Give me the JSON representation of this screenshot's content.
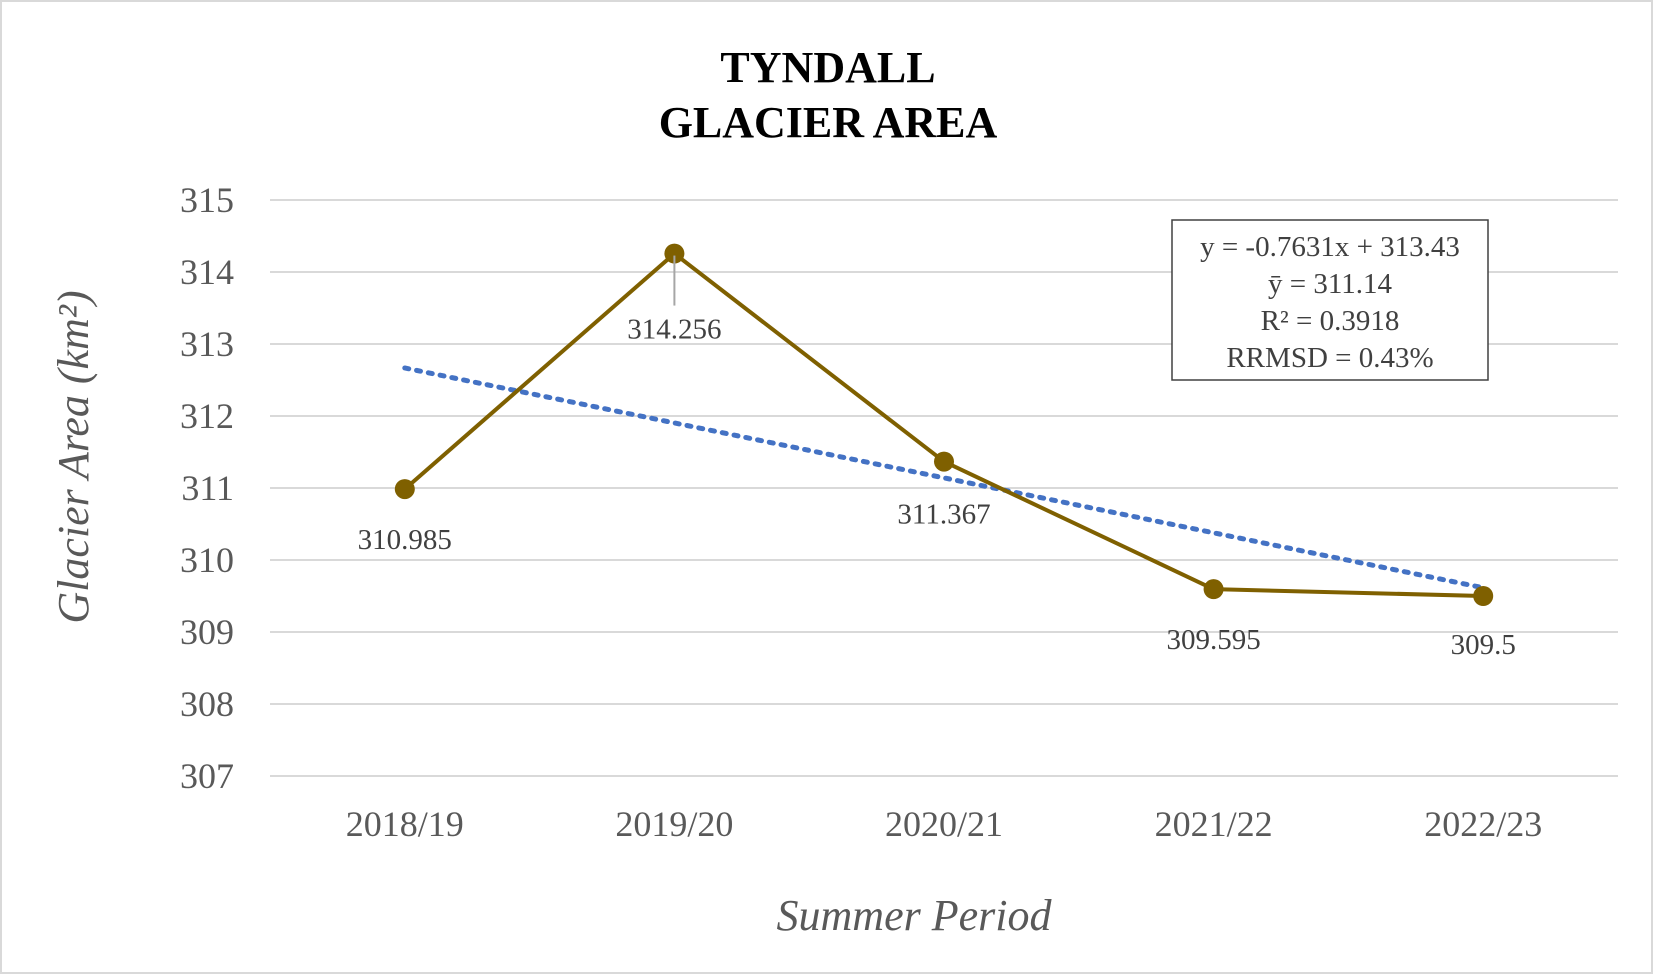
{
  "chart_data": {
    "type": "line",
    "title_lines": [
      "TYNDALL",
      "GLACIER AREA"
    ],
    "xlabel": "Summer Period",
    "ylabel": "Glacier Area (km²)",
    "categories": [
      "2018/19",
      "2019/20",
      "2020/21",
      "2021/22",
      "2022/23"
    ],
    "series": [
      {
        "values": [
          310.985,
          314.256,
          311.367,
          309.595,
          309.5
        ],
        "color": "#7f6000"
      }
    ],
    "data_labels": [
      "310.985",
      "314.256",
      "311.367",
      "309.595",
      "309.5"
    ],
    "trendline": {
      "type": "linear",
      "slope": -0.7631,
      "intercept": 313.43,
      "style": "dotted",
      "color": "#4472c4"
    },
    "ylim": [
      307,
      315
    ],
    "yticks": [
      307,
      308,
      309,
      310,
      311,
      312,
      313,
      314,
      315
    ],
    "grid": true,
    "gridline_color": "#d9d9d9",
    "annotation_lines": [
      "y = -0.7631x + 313.43",
      "ȳ = 311.14",
      "R² = 0.3918",
      "RRMSD = 0.43%"
    ]
  }
}
